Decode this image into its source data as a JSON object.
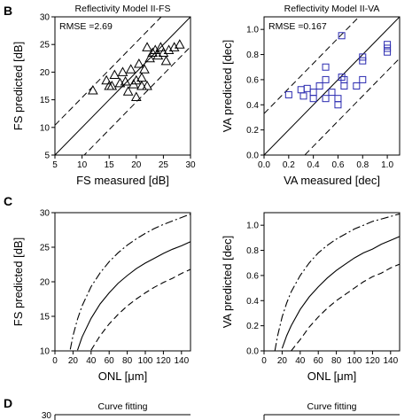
{
  "panel_letters": [
    "B",
    "C",
    "D"
  ],
  "chart_data": [
    {
      "type": "scatter",
      "panel": "B",
      "title": "Reflectivity Model II-FS",
      "xlabel": "FS measured [dB]",
      "ylabel": "FS predicted [dB]",
      "xlim": [
        5,
        30
      ],
      "ylim": [
        5,
        30
      ],
      "xticks": [
        5,
        10,
        15,
        20,
        25,
        30
      ],
      "yticks": [
        5,
        10,
        15,
        20,
        25,
        30
      ],
      "tick_labels_x": [
        "5",
        "10",
        "15",
        "20",
        "25",
        "30"
      ],
      "tick_labels_y": [
        "5",
        "10",
        "15",
        "20",
        "25",
        "30"
      ],
      "annotation": "RMSE =2.69",
      "marker": "triangle",
      "marker_color": "#000000",
      "reference_line": {
        "slope": 1,
        "intercept": 0,
        "style": "solid"
      },
      "bound_lines": [
        {
          "intercept": 5.4,
          "style": "dashed"
        },
        {
          "intercept": -5.4,
          "style": "dashed"
        }
      ],
      "points": [
        [
          12,
          16.7
        ],
        [
          14.5,
          18.5
        ],
        [
          15,
          17.5
        ],
        [
          15.5,
          17.5
        ],
        [
          16,
          19.5
        ],
        [
          17,
          18
        ],
        [
          17.5,
          20
        ],
        [
          18,
          18.3
        ],
        [
          18.5,
          16.5
        ],
        [
          19,
          20.5
        ],
        [
          19.5,
          17.8
        ],
        [
          20,
          15.5
        ],
        [
          20,
          18.5
        ],
        [
          20.5,
          21.5
        ],
        [
          21,
          19
        ],
        [
          21,
          17.5
        ],
        [
          21.5,
          20.5
        ],
        [
          22,
          24.5
        ],
        [
          22.5,
          22.5
        ],
        [
          23,
          23.5
        ],
        [
          23.5,
          24
        ],
        [
          24,
          23
        ],
        [
          24.5,
          24.5
        ],
        [
          25,
          23.5
        ],
        [
          25.5,
          22
        ],
        [
          26,
          24
        ],
        [
          27,
          24.5
        ],
        [
          28,
          25
        ],
        [
          22,
          17.5
        ]
      ]
    },
    {
      "type": "scatter",
      "panel": "B",
      "title": "Reflectivity Model II-VA",
      "xlabel": "VA measured [dec]",
      "ylabel": "VA predicted [dec]",
      "xlim": [
        0,
        1.1
      ],
      "ylim": [
        0,
        1.1
      ],
      "xticks": [
        0,
        0.2,
        0.4,
        0.6,
        0.8,
        1.0
      ],
      "yticks": [
        0,
        0.2,
        0.4,
        0.6,
        0.8,
        1.0
      ],
      "tick_labels_x": [
        "0.0",
        "0.2",
        "0.4",
        "0.6",
        "0.8",
        "1.0"
      ],
      "tick_labels_y": [
        "0.0",
        "0.2",
        "0.4",
        "0.6",
        "0.8",
        "1.0"
      ],
      "annotation": "RMSE =0.167",
      "marker": "square",
      "marker_color": "#2a2ab0",
      "reference_line": {
        "slope": 1,
        "intercept": 0,
        "style": "solid"
      },
      "bound_lines": [
        {
          "intercept": 0.33,
          "style": "dashed"
        },
        {
          "intercept": -0.33,
          "style": "dashed"
        }
      ],
      "points": [
        [
          0.2,
          0.48
        ],
        [
          0.3,
          0.52
        ],
        [
          0.32,
          0.47
        ],
        [
          0.35,
          0.53
        ],
        [
          0.4,
          0.45
        ],
        [
          0.4,
          0.5
        ],
        [
          0.45,
          0.55
        ],
        [
          0.5,
          0.6
        ],
        [
          0.5,
          0.7
        ],
        [
          0.5,
          0.45
        ],
        [
          0.55,
          0.5
        ],
        [
          0.6,
          0.45
        ],
        [
          0.6,
          0.4
        ],
        [
          0.63,
          0.62
        ],
        [
          0.63,
          0.95
        ],
        [
          0.65,
          0.6
        ],
        [
          0.65,
          0.55
        ],
        [
          0.8,
          0.6
        ],
        [
          0.8,
          0.75
        ],
        [
          0.8,
          0.78
        ],
        [
          1.0,
          0.82
        ],
        [
          1.0,
          0.85
        ],
        [
          1.0,
          0.88
        ],
        [
          0.75,
          0.55
        ]
      ]
    },
    {
      "type": "line",
      "panel": "C",
      "title": "",
      "xlabel": "ONL [μm]",
      "ylabel": "FS predicted [dB]",
      "xlim": [
        0,
        150
      ],
      "ylim": [
        10,
        30
      ],
      "xticks": [
        0,
        20,
        40,
        60,
        80,
        100,
        120,
        140
      ],
      "yticks": [
        10,
        15,
        20,
        25,
        30
      ],
      "tick_labels_x": [
        "0",
        "20",
        "40",
        "60",
        "80",
        "100",
        "120",
        "140"
      ],
      "tick_labels_y": [
        "10",
        "15",
        "20",
        "25",
        "30"
      ],
      "x": [
        17,
        20,
        25,
        30,
        40,
        50,
        60,
        70,
        80,
        90,
        100,
        110,
        120,
        130,
        140,
        150
      ],
      "series": [
        {
          "style": "dash-dot",
          "values": [
            10.2,
            12.2,
            14.6,
            16.5,
            19.3,
            21.3,
            22.9,
            24.2,
            25.3,
            26.2,
            27.0,
            27.7,
            28.3,
            28.8,
            29.3,
            29.8
          ]
        },
        {
          "style": "solid",
          "values": [
            null,
            null,
            10.1,
            12.0,
            14.7,
            16.8,
            18.4,
            19.8,
            20.9,
            21.9,
            22.7,
            23.4,
            24.1,
            24.7,
            25.2,
            25.8
          ]
        },
        {
          "style": "dashed",
          "values": [
            null,
            null,
            null,
            null,
            10.1,
            12.2,
            13.9,
            15.3,
            16.5,
            17.5,
            18.4,
            19.2,
            19.9,
            20.5,
            21.2,
            21.8
          ]
        }
      ]
    },
    {
      "type": "line",
      "panel": "C",
      "title": "",
      "xlabel": "ONL [μm]",
      "ylabel": "VA predicted [dec]",
      "xlim": [
        0,
        150
      ],
      "ylim": [
        0,
        1.1
      ],
      "xticks": [
        0,
        20,
        40,
        60,
        80,
        100,
        120,
        140
      ],
      "yticks": [
        0,
        0.2,
        0.4,
        0.6,
        0.8,
        1.0
      ],
      "tick_labels_x": [
        "0",
        "20",
        "40",
        "60",
        "80",
        "100",
        "120",
        "140"
      ],
      "tick_labels_y": [
        "0.0",
        "0.2",
        "0.4",
        "0.6",
        "0.8",
        "1.0"
      ],
      "x": [
        12,
        15,
        20,
        25,
        30,
        40,
        50,
        60,
        70,
        80,
        90,
        100,
        110,
        120,
        130,
        140,
        150
      ],
      "series": [
        {
          "style": "dash-dot",
          "values": [
            0.0,
            0.12,
            0.27,
            0.38,
            0.47,
            0.6,
            0.7,
            0.78,
            0.84,
            0.89,
            0.93,
            0.97,
            1.0,
            1.03,
            1.05,
            1.07,
            1.09
          ]
        },
        {
          "style": "solid",
          "values": [
            null,
            null,
            0.02,
            0.12,
            0.2,
            0.33,
            0.43,
            0.51,
            0.58,
            0.64,
            0.69,
            0.74,
            0.78,
            0.81,
            0.85,
            0.88,
            0.91
          ]
        },
        {
          "style": "dashed",
          "values": [
            null,
            null,
            null,
            null,
            0.0,
            0.09,
            0.19,
            0.27,
            0.34,
            0.4,
            0.45,
            0.5,
            0.55,
            0.59,
            0.62,
            0.66,
            0.69
          ]
        }
      ]
    },
    {
      "type": "line",
      "panel": "D",
      "title": "Curve fitting",
      "ytick_visible": "30"
    },
    {
      "type": "line",
      "panel": "D",
      "title": "Curve fitting"
    }
  ]
}
